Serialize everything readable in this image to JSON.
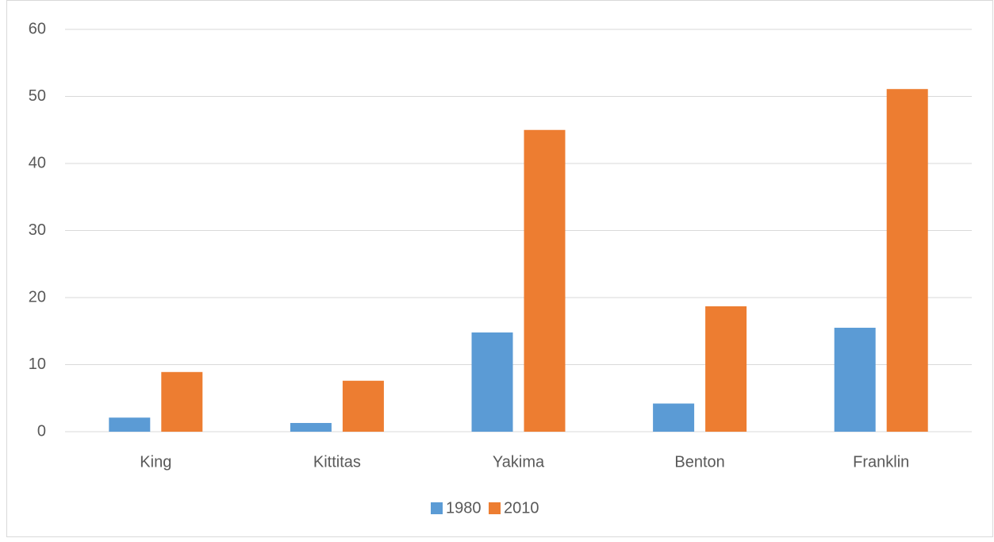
{
  "chart_data": {
    "type": "bar",
    "categories": [
      "King",
      "Kittitas",
      "Yakima",
      "Benton",
      "Franklin"
    ],
    "series": [
      {
        "name": "1980",
        "color": "#5b9bd5",
        "values": [
          2.1,
          1.3,
          14.8,
          4.2,
          15.5
        ]
      },
      {
        "name": "2010",
        "color": "#ed7d31",
        "values": [
          8.9,
          7.6,
          45.0,
          18.7,
          51.1
        ]
      }
    ],
    "ylim": [
      0,
      60
    ],
    "yticks": [
      0,
      10,
      20,
      30,
      40,
      50,
      60
    ],
    "grid": true,
    "legend": "bottom"
  }
}
